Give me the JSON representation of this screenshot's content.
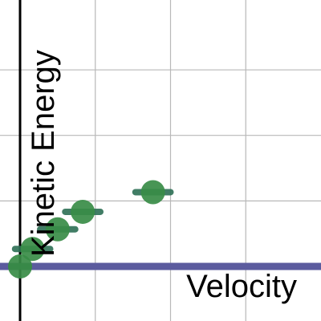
{
  "chart_data": {
    "type": "scatter",
    "xlabel": "Velocity",
    "ylabel": "Kinetic Energy",
    "xlim": [
      -0.8,
      12
    ],
    "ylim": [
      -2.5,
      12.2
    ],
    "grid": true,
    "grid_x": [
      3,
      6,
      9
    ],
    "grid_y": [
      0,
      3,
      6,
      9
    ],
    "series": [
      {
        "points": [
          {
            "x": 0.0,
            "y": 0.0,
            "xerr": 0.35
          },
          {
            "x": 0.5,
            "y": 0.8,
            "xerr": 0.7
          },
          {
            "x": 1.5,
            "y": 1.7,
            "xerr": 0.7
          },
          {
            "x": 2.5,
            "y": 2.5,
            "xerr": 0.7
          },
          {
            "x": 5.3,
            "y": 3.4,
            "xerr": 0.7
          }
        ]
      }
    ],
    "reference_line": {
      "y": 0
    }
  },
  "colors": {
    "point": "#388c46",
    "error_bar": "#2d7055",
    "reference_line": "#5b5b9e",
    "axis": "#000000",
    "grid": "#b8b8b8"
  }
}
